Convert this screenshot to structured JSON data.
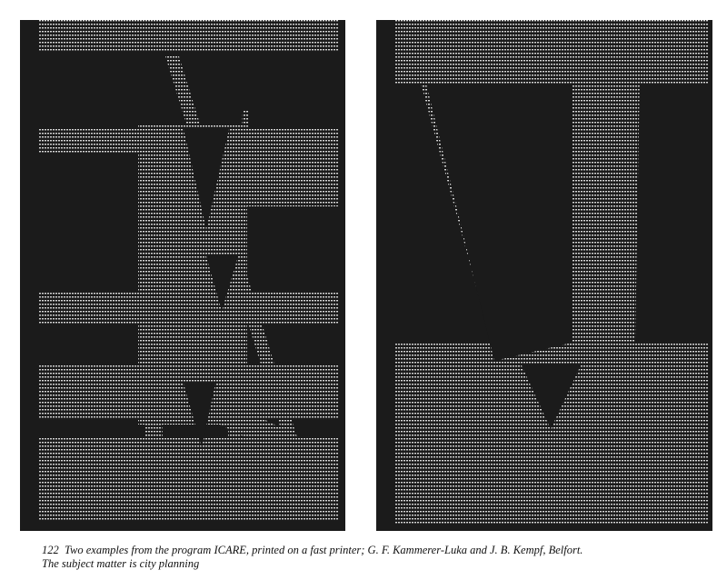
{
  "figure": {
    "number": "122",
    "caption_line1": "Two examples from the program ICARE, printed on a fast printer; G. F. Kammerer-Luka and J. B. Kempf, Belfort.",
    "caption_line2": "The subject matter is city planning"
  },
  "colors": {
    "paper": "#ffffff",
    "panel": "#1b1b1b",
    "print": "#d8d8d8"
  },
  "panels": [
    {
      "name": "left-printout",
      "subject": "city-planning"
    },
    {
      "name": "right-printout",
      "subject": "city-planning"
    }
  ]
}
